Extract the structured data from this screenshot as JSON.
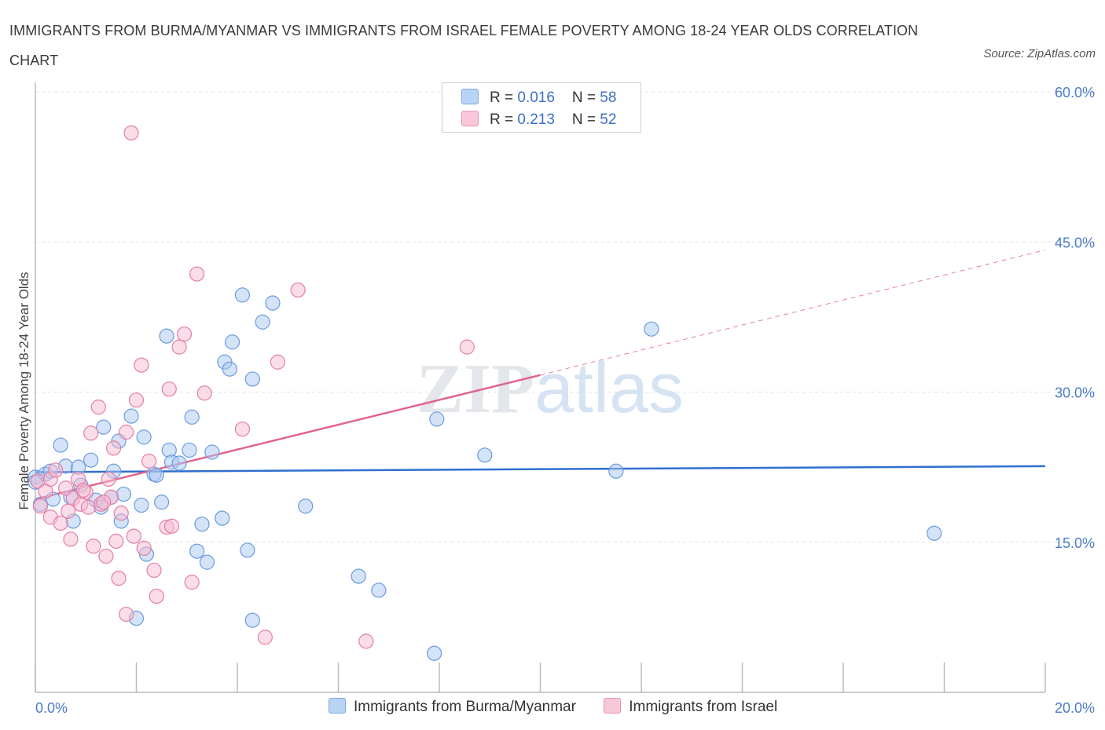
{
  "title": "IMMIGRANTS FROM BURMA/MYANMAR VS IMMIGRANTS FROM ISRAEL FEMALE POVERTY AMONG 18-24 YEAR OLDS CORRELATION CHART",
  "source": "Source: ZipAtlas.com",
  "watermark": "ZIPatlas",
  "chart_data": {
    "type": "scatter",
    "title": "IMMIGRANTS FROM BURMA/MYANMAR VS IMMIGRANTS FROM ISRAEL FEMALE POVERTY AMONG 18-24 YEAR OLDS CORRELATION CHART",
    "xlabel": "",
    "ylabel": "Female Poverty Among 18-24 Year Olds",
    "xlim": [
      0,
      20
    ],
    "ylim": [
      0,
      60
    ],
    "x_tick_labels": [
      "0.0%",
      "20.0%"
    ],
    "y_ticks": [
      15,
      30,
      45,
      60
    ],
    "y_tick_labels": [
      "15.0%",
      "30.0%",
      "45.0%",
      "60.0%"
    ],
    "grid": true,
    "legend_position": "top-center",
    "series": [
      {
        "name": "Immigrants from Burma/Myanmar",
        "color": "#a9c8f0",
        "stroke": "#6a9be0",
        "line_color": "#2f6fcf",
        "R": "0.016",
        "N": "58",
        "trend": [
          [
            0,
            22.0
          ],
          [
            20,
            22.6
          ]
        ],
        "points": [
          [
            0.0,
            21.5
          ],
          [
            0.1,
            18.8
          ],
          [
            0.2,
            21.8
          ],
          [
            0.3,
            22.1
          ],
          [
            0.35,
            19.3
          ],
          [
            0.5,
            24.7
          ],
          [
            0.6,
            22.6
          ],
          [
            0.7,
            19.5
          ],
          [
            0.75,
            17.1
          ],
          [
            0.85,
            22.5
          ],
          [
            0.9,
            20.7
          ],
          [
            1.1,
            23.2
          ],
          [
            1.2,
            19.2
          ],
          [
            1.3,
            18.5
          ],
          [
            1.35,
            26.5
          ],
          [
            1.5,
            19.5
          ],
          [
            1.55,
            22.1
          ],
          [
            1.65,
            25.1
          ],
          [
            1.7,
            17.1
          ],
          [
            1.75,
            19.8
          ],
          [
            1.9,
            27.6
          ],
          [
            2.0,
            7.4
          ],
          [
            2.1,
            18.7
          ],
          [
            2.15,
            25.5
          ],
          [
            2.2,
            13.8
          ],
          [
            2.35,
            21.8
          ],
          [
            2.4,
            21.7
          ],
          [
            2.5,
            19.0
          ],
          [
            2.6,
            35.6
          ],
          [
            2.65,
            24.2
          ],
          [
            2.7,
            23.0
          ],
          [
            2.85,
            22.9
          ],
          [
            3.05,
            24.2
          ],
          [
            3.1,
            27.5
          ],
          [
            3.2,
            14.1
          ],
          [
            3.3,
            16.8
          ],
          [
            3.4,
            13.0
          ],
          [
            3.5,
            24.0
          ],
          [
            3.7,
            17.4
          ],
          [
            3.75,
            33.0
          ],
          [
            3.85,
            32.3
          ],
          [
            3.9,
            35.0
          ],
          [
            4.1,
            39.7
          ],
          [
            4.2,
            14.2
          ],
          [
            4.3,
            31.3
          ],
          [
            4.3,
            7.2
          ],
          [
            4.5,
            37.0
          ],
          [
            4.7,
            38.9
          ],
          [
            5.35,
            18.6
          ],
          [
            6.4,
            11.6
          ],
          [
            6.8,
            10.2
          ],
          [
            7.9,
            3.9
          ],
          [
            7.95,
            27.3
          ],
          [
            8.9,
            23.7
          ],
          [
            11.5,
            22.1
          ],
          [
            12.2,
            36.3
          ],
          [
            17.8,
            15.9
          ],
          [
            0.0,
            21.0
          ]
        ]
      },
      {
        "name": "Immigrants from Israel",
        "color": "#f5bcd2",
        "stroke": "#e47ea5",
        "line_color": "#e0628f",
        "R": "0.213",
        "N": "52",
        "trend": [
          [
            0,
            19.3
          ],
          [
            10,
            31.7
          ]
        ],
        "trend_ext": [
          [
            10,
            31.7
          ],
          [
            20,
            44.2
          ]
        ],
        "points": [
          [
            0.05,
            21.1
          ],
          [
            0.1,
            18.6
          ],
          [
            0.2,
            20.1
          ],
          [
            0.3,
            21.3
          ],
          [
            0.3,
            17.5
          ],
          [
            0.4,
            22.2
          ],
          [
            0.5,
            16.9
          ],
          [
            0.6,
            20.4
          ],
          [
            0.65,
            18.1
          ],
          [
            0.7,
            15.3
          ],
          [
            0.75,
            19.4
          ],
          [
            0.85,
            21.3
          ],
          [
            0.9,
            18.8
          ],
          [
            1.0,
            20.0
          ],
          [
            1.05,
            18.5
          ],
          [
            1.1,
            25.9
          ],
          [
            1.15,
            14.6
          ],
          [
            1.25,
            28.5
          ],
          [
            1.3,
            18.8
          ],
          [
            1.4,
            13.6
          ],
          [
            1.45,
            21.3
          ],
          [
            1.5,
            19.5
          ],
          [
            1.55,
            24.4
          ],
          [
            1.6,
            15.1
          ],
          [
            1.65,
            11.4
          ],
          [
            1.7,
            17.9
          ],
          [
            1.8,
            7.8
          ],
          [
            1.8,
            26.0
          ],
          [
            1.9,
            55.9
          ],
          [
            1.95,
            15.6
          ],
          [
            2.0,
            29.2
          ],
          [
            2.1,
            32.7
          ],
          [
            2.15,
            14.4
          ],
          [
            2.25,
            23.1
          ],
          [
            2.35,
            12.2
          ],
          [
            2.4,
            9.6
          ],
          [
            2.6,
            16.5
          ],
          [
            2.65,
            30.3
          ],
          [
            2.7,
            16.6
          ],
          [
            2.85,
            34.5
          ],
          [
            2.95,
            35.8
          ],
          [
            3.1,
            11.0
          ],
          [
            3.2,
            41.8
          ],
          [
            3.35,
            29.9
          ],
          [
            4.1,
            26.3
          ],
          [
            4.55,
            5.5
          ],
          [
            4.8,
            33.0
          ],
          [
            5.2,
            40.2
          ],
          [
            6.55,
            5.1
          ],
          [
            8.55,
            34.5
          ],
          [
            1.35,
            19.0
          ],
          [
            0.95,
            20.2
          ]
        ]
      }
    ]
  },
  "legend": {
    "rows": [
      {
        "r_label": "R = ",
        "r_value": "0.016",
        "n_label": "N = ",
        "n_value": "58"
      },
      {
        "r_label": "R = ",
        "r_value": "0.213",
        "n_label": "N = ",
        "n_value": "52"
      }
    ]
  },
  "bottom_legend": [
    "Immigrants from Burma/Myanmar",
    "Immigrants from Israel"
  ]
}
